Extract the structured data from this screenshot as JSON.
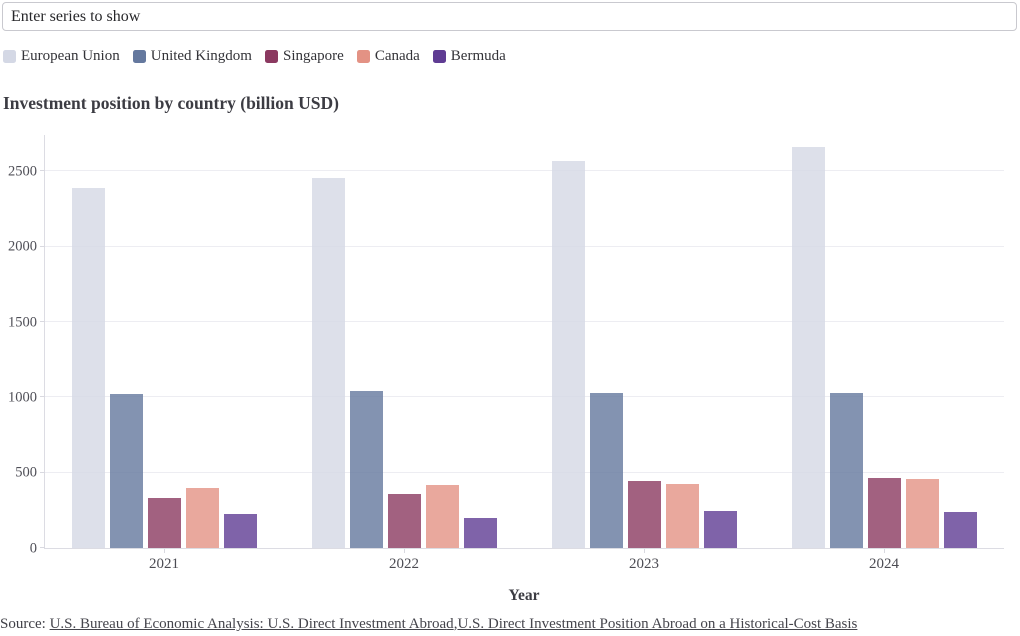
{
  "search": {
    "placeholder": "Enter series to show"
  },
  "source": {
    "prefix": "Source: ",
    "links": [
      {
        "label": "U.S. Bureau of Economic Analysis: U.S. Direct Investment Abroad"
      },
      {
        "label": "U.S. Direct Investment Position Abroad on a Historical-Cost Basis"
      }
    ],
    "separator": ","
  },
  "chart_data": {
    "type": "bar",
    "title": "Investment position by country (billion USD)",
    "xlabel": "Year",
    "ylabel": "",
    "categories": [
      "2021",
      "2022",
      "2023",
      "2024"
    ],
    "series": [
      {
        "name": "European Union",
        "color": "#d4d8e5",
        "values": [
          2390,
          2455,
          2570,
          2660
        ]
      },
      {
        "name": "United Kingdom",
        "color": "#64789e",
        "values": [
          1025,
          1040,
          1026,
          1028
        ]
      },
      {
        "name": "Singapore",
        "color": "#8b3960",
        "values": [
          335,
          361,
          446,
          468
        ]
      },
      {
        "name": "Canada",
        "color": "#e39284",
        "values": [
          399,
          417,
          425,
          459
        ]
      },
      {
        "name": "Bermuda",
        "color": "#5f3c93",
        "values": [
          227,
          197,
          247,
          240
        ]
      }
    ],
    "yticks": [
      0,
      500,
      1000,
      1500,
      2000,
      2500
    ],
    "ylim": [
      0,
      2742
    ],
    "grid": true,
    "legend_position": "top",
    "bar_opacity": 0.8,
    "colors": {
      "grid": "#ededf2",
      "axis": "#dcdce3",
      "tick_text": "#4f4f57",
      "title_text": "#3c3c43"
    }
  }
}
